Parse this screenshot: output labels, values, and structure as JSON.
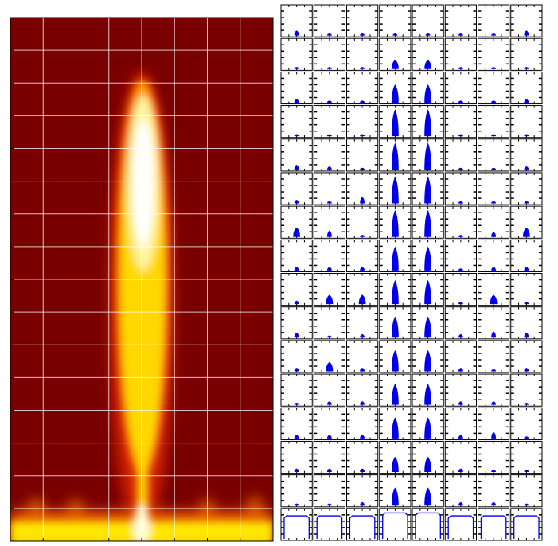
{
  "panels": {
    "rows": [
      [
        0.15,
        0.05,
        0.05,
        0.05,
        0.05,
        0.05,
        0.05,
        0.15
      ],
      [
        0.05,
        0.05,
        0.05,
        0.3,
        0.3,
        0.05,
        0.05,
        0.05
      ],
      [
        0.1,
        0.05,
        0.05,
        0.6,
        0.6,
        0.05,
        0.05,
        0.1
      ],
      [
        0.05,
        0.05,
        0.05,
        0.9,
        0.9,
        0.05,
        0.05,
        0.05
      ],
      [
        0.15,
        0.1,
        0.05,
        0.9,
        0.9,
        0.05,
        0.05,
        0.1
      ],
      [
        0.1,
        0.05,
        0.2,
        0.9,
        0.9,
        0.05,
        0.05,
        0.05
      ],
      [
        0.3,
        0.2,
        0.05,
        0.9,
        0.9,
        0.05,
        0.15,
        0.3
      ],
      [
        0.1,
        0.1,
        0.1,
        0.8,
        0.8,
        0.05,
        0.1,
        0.1
      ],
      [
        0.1,
        0.3,
        0.3,
        0.8,
        0.8,
        0.05,
        0.3,
        0.05
      ],
      [
        0.15,
        0.05,
        0.1,
        0.7,
        0.7,
        0.1,
        0.2,
        0.15
      ],
      [
        0.1,
        0.3,
        0.1,
        0.7,
        0.7,
        0.1,
        0.05,
        0.1
      ],
      [
        0.05,
        0.1,
        0.1,
        0.7,
        0.7,
        0.1,
        0.1,
        0.05
      ],
      [
        0.1,
        0.1,
        0.1,
        0.7,
        0.7,
        0.1,
        0.2,
        0.05
      ],
      [
        0.1,
        0.1,
        0.1,
        0.5,
        0.5,
        0.1,
        0.05,
        0.05
      ],
      [
        0.05,
        0.05,
        0.1,
        0.6,
        0.6,
        0.1,
        0.1,
        0.05
      ],
      [
        0.8,
        0.8,
        0.8,
        0.9,
        0.9,
        0.8,
        0.8,
        0.8
      ]
    ]
  }
}
